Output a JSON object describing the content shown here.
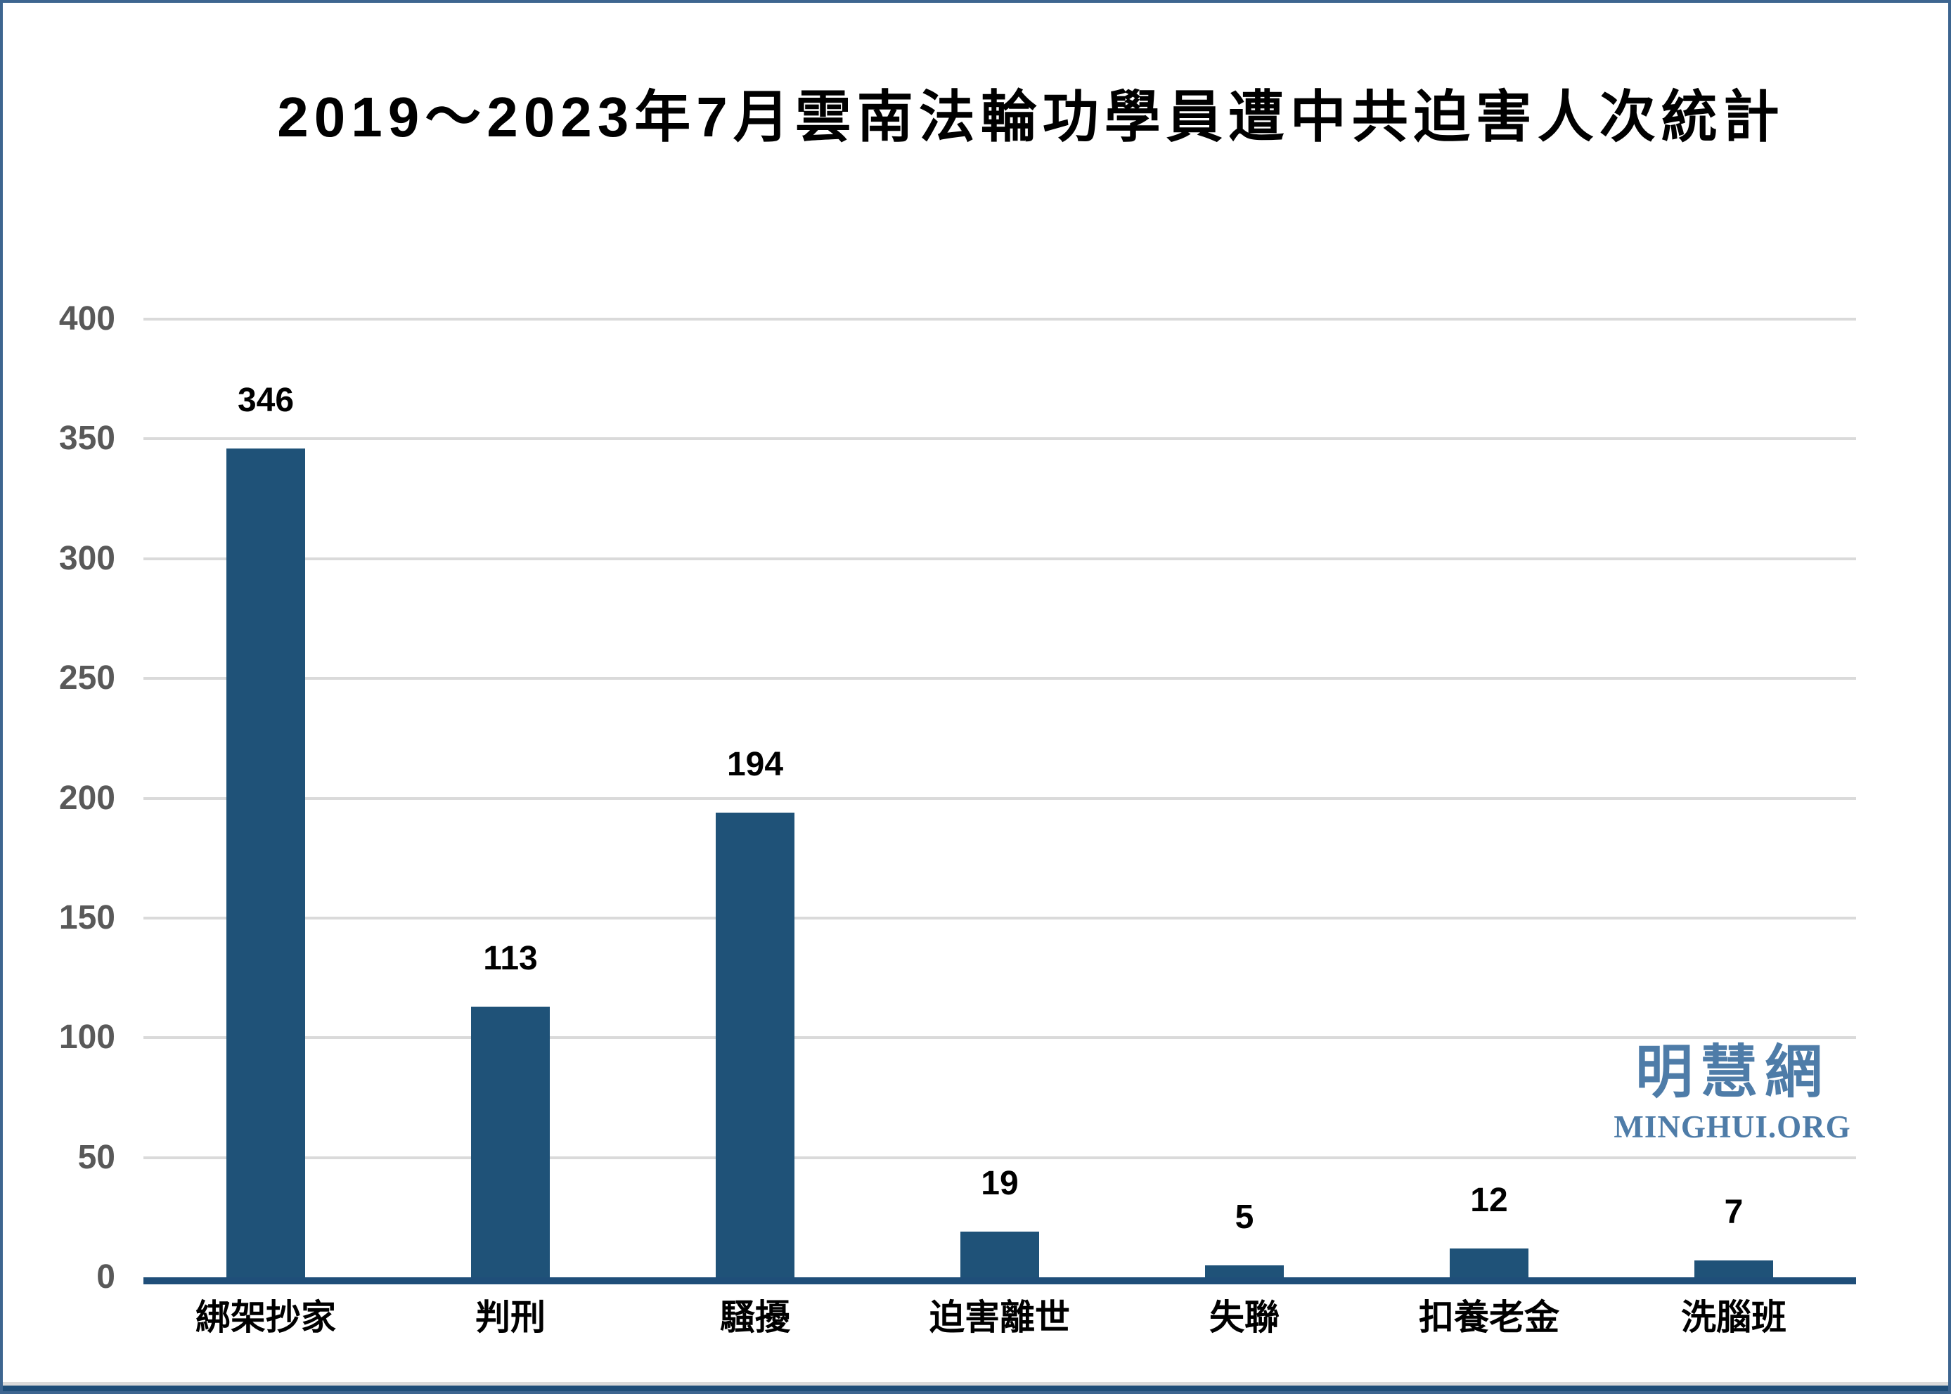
{
  "title": "2019～2023年7月雲南法輪功學員遭中共迫害人次統計",
  "watermark": {
    "cn": "明慧網",
    "en": "MINGHUI.ORG",
    "color": "#4e7ca8"
  },
  "colors": {
    "bar": "#1f5278",
    "axis_line": "#1f4e79",
    "gridline": "#dadada",
    "tick_label": "#595959",
    "data_label": "#000000",
    "frame_border": "#3d6590",
    "bottom_strip": "#1f4e79",
    "background": "#ffffff"
  },
  "chart_data": {
    "type": "bar",
    "title": "2019～2023年7月雲南法輪功學員遭中共迫害人次統計",
    "categories": [
      "綁架抄家",
      "判刑",
      "騷擾",
      "迫害離世",
      "失聯",
      "扣養老金",
      "洗腦班"
    ],
    "values": [
      346,
      113,
      194,
      19,
      5,
      12,
      7
    ],
    "data_labels": [
      "346",
      "113",
      "194",
      "19",
      "5",
      "12",
      "7"
    ],
    "xlabel": "",
    "ylabel": "",
    "ylim": [
      0,
      400
    ],
    "yticks": [
      0,
      50,
      100,
      150,
      200,
      250,
      300,
      350,
      400
    ],
    "grid": true,
    "legend": false,
    "bar_color": "#1f5278"
  }
}
